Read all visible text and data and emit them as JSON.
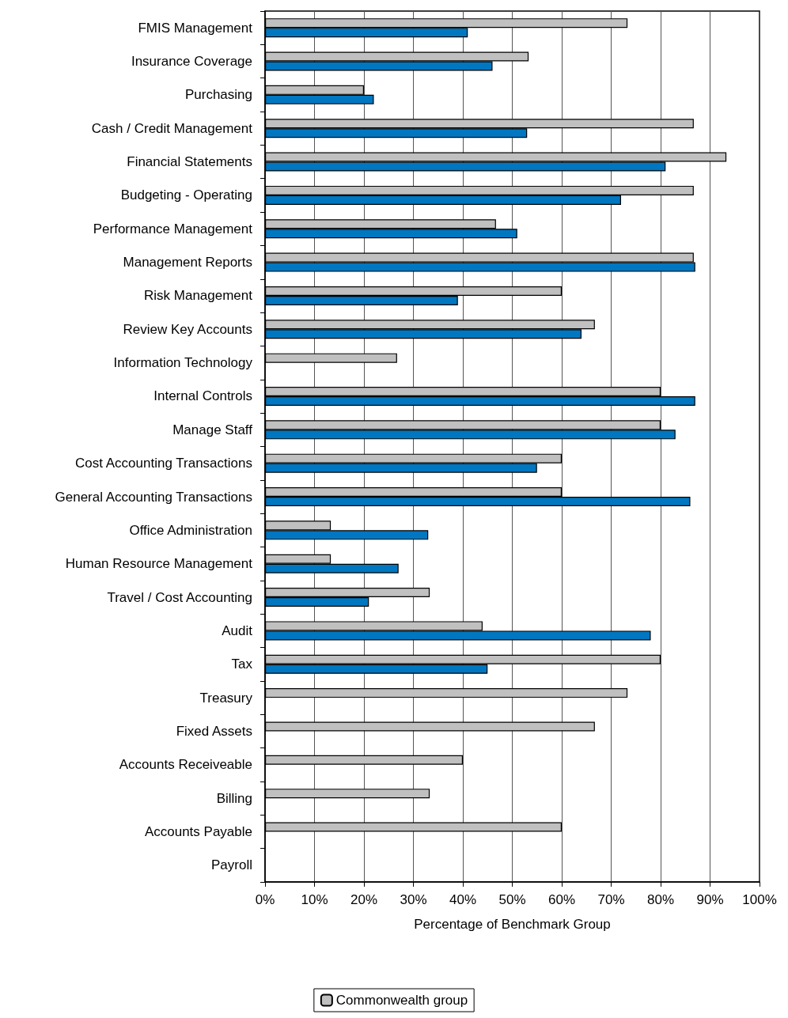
{
  "chart_data": {
    "type": "bar",
    "orientation": "horizontal",
    "xlabel": "Percentage of Benchmark Group",
    "categories": [
      "FMIS Management",
      "Insurance Coverage",
      "Purchasing",
      "Cash / Credit Management",
      "Financial Statements",
      "Budgeting - Operating",
      "Performance Management",
      "Management Reports",
      "Risk Management",
      "Review Key Accounts",
      "Information Technology",
      "Internal Controls",
      "Manage Staff",
      "Cost Accounting Transactions",
      "General Accounting Transactions",
      "Office Administration",
      "Human Resource Management",
      "Travel / Cost Accounting",
      "Audit",
      "Tax",
      "Treasury",
      "Fixed Assets",
      "Accounts Receiveable",
      "Billing",
      "Accounts Payable",
      "Payroll"
    ],
    "series": [
      {
        "name": "Commonwealth group",
        "color": "#c0c0c0",
        "values": [
          73.3,
          53.3,
          20,
          86.7,
          93.3,
          86.7,
          46.7,
          86.7,
          60,
          66.7,
          26.7,
          80,
          80,
          60,
          60,
          13.3,
          13.3,
          33.3,
          44,
          80,
          73.3,
          66.7,
          40,
          33.3,
          60,
          null
        ]
      },
      {
        "color": "#0077c0",
        "values": [
          41,
          46,
          22,
          53,
          81,
          72,
          51,
          87,
          39,
          64,
          null,
          87,
          83,
          55,
          86,
          33,
          27,
          21,
          78,
          45,
          null,
          null,
          null,
          null,
          null,
          null
        ]
      }
    ],
    "xlim": [
      0,
      100
    ],
    "xticks": [
      {
        "value": 0,
        "label": "0%"
      },
      {
        "value": 10,
        "label": "10%"
      },
      {
        "value": 20,
        "label": "20%"
      },
      {
        "value": 30,
        "label": "30%"
      },
      {
        "value": 40,
        "label": "40%"
      },
      {
        "value": 50,
        "label": "50%"
      },
      {
        "value": 60,
        "label": "60%"
      },
      {
        "value": 70,
        "label": "70%"
      },
      {
        "value": 80,
        "label": "80%"
      },
      {
        "value": 90,
        "label": "90%"
      },
      {
        "value": 100,
        "label": "100%"
      }
    ],
    "grid": "x",
    "legend": "bottom"
  }
}
